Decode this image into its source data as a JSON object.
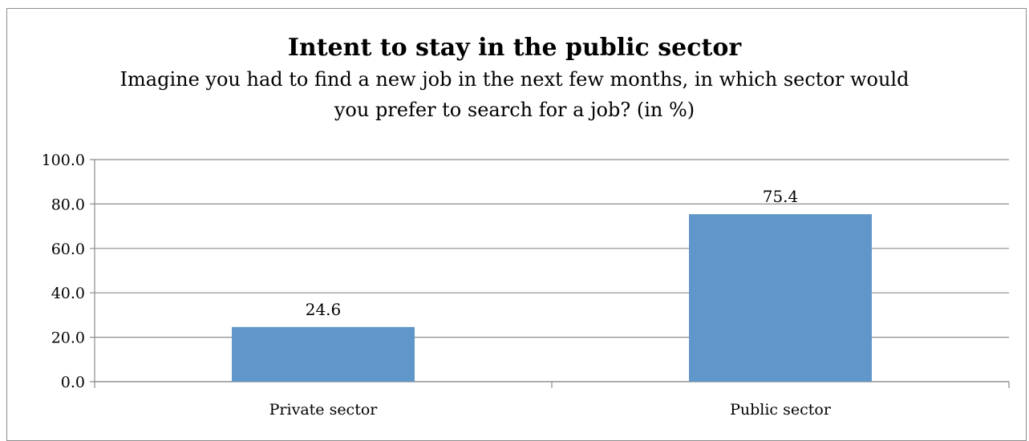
{
  "chart_data": {
    "type": "bar",
    "title": "Intent to stay in the public sector",
    "subtitle": "Imagine you had to find a new job in the next few months, in which sector would you prefer to search for a job? (in %)",
    "categories": [
      "Private sector",
      "Public sector"
    ],
    "values": [
      24.6,
      75.4
    ],
    "data_labels": [
      "24.6",
      "75.4"
    ],
    "ylim": [
      0,
      100
    ],
    "yticks": [
      "0.0",
      "20.0",
      "40.0",
      "60.0",
      "80.0",
      "100.0"
    ],
    "grid": true,
    "legend": "none",
    "xlabel": "",
    "ylabel": "",
    "bar_color": "#6096c9",
    "grid_color": "#8c8c8c"
  }
}
